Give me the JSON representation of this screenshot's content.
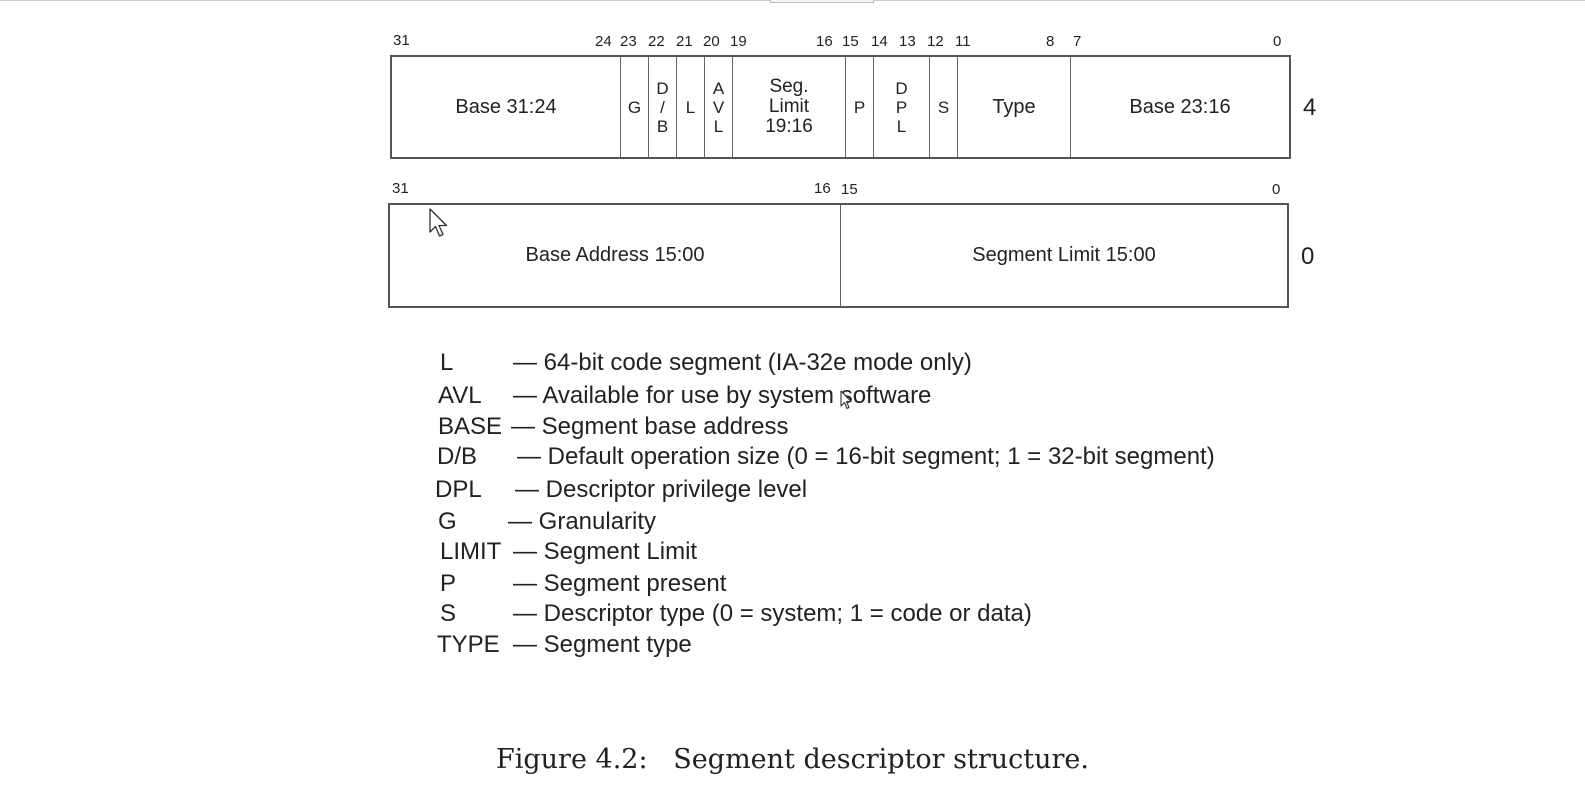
{
  "row_high": {
    "offset": "4",
    "bit_labels": [
      "31",
      "24",
      "23",
      "22",
      "21",
      "20",
      "19",
      "16",
      "15",
      "14",
      "13",
      "12",
      "11",
      "8",
      "7",
      "0"
    ],
    "fields": {
      "base_31_24": "Base 31:24",
      "g": "G",
      "db": [
        "D",
        "/",
        "B"
      ],
      "l": "L",
      "avl": [
        "A",
        "V",
        "L"
      ],
      "seg_limit": [
        "Seg.",
        "Limit",
        "19:16"
      ],
      "p": "P",
      "dpl": [
        "D",
        "P",
        "L"
      ],
      "s": "S",
      "type": "Type",
      "base_23_16": "Base 23:16"
    }
  },
  "row_low": {
    "offset": "0",
    "bit_labels": [
      "31",
      "16",
      "15",
      "0"
    ],
    "fields": {
      "base_15_00": "Base Address 15:00",
      "limit_15_00": "Segment Limit 15:00"
    }
  },
  "legend": [
    {
      "abbr": "L",
      "desc": "— 64-bit code segment (IA-32e mode only)"
    },
    {
      "abbr": "AVL",
      "desc": "— Available for use by system software"
    },
    {
      "abbr": "BASE",
      "desc": "— Segment base address"
    },
    {
      "abbr": "D/B",
      "desc": "— Default operation size (0 = 16-bit segment; 1 = 32-bit segment)"
    },
    {
      "abbr": "DPL",
      "desc": "— Descriptor privilege level"
    },
    {
      "abbr": "G",
      "desc": "— Granularity"
    },
    {
      "abbr": "LIMIT",
      "desc": "— Segment Limit"
    },
    {
      "abbr": "P",
      "desc": "— Segment present"
    },
    {
      "abbr": "S",
      "desc": "— Descriptor type (0 = system; 1 = code or data)"
    },
    {
      "abbr": "TYPE",
      "desc": "— Segment type"
    }
  ],
  "caption": "Figure 4.2:   Segment descriptor structure.",
  "icons": [
    "mouse-pointer-icon",
    "text-cursor-icon"
  ]
}
